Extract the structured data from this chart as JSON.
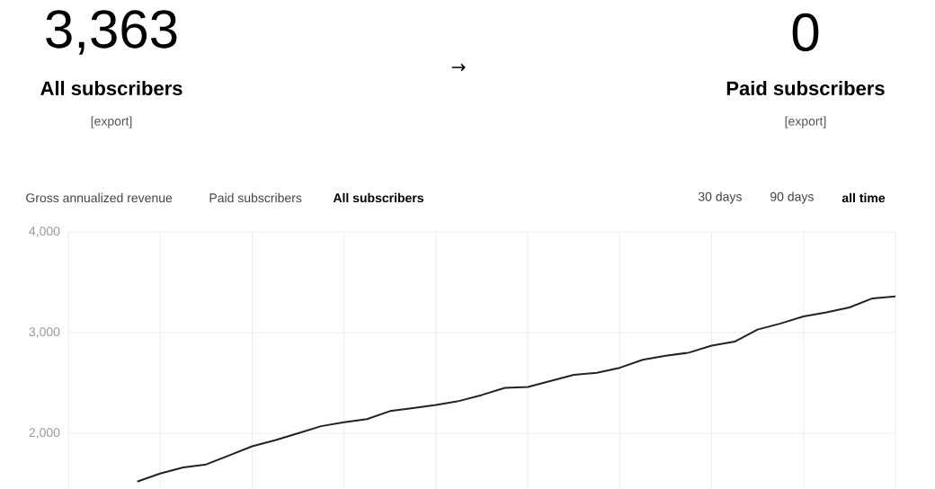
{
  "chart_data": {
    "type": "line",
    "color": "#222222",
    "categories": [
      null,
      null,
      null,
      null,
      null,
      null,
      null,
      null,
      null,
      null,
      null,
      null,
      null,
      null,
      null,
      null,
      null,
      null,
      null,
      null,
      null,
      null,
      null,
      null,
      null,
      null,
      null,
      null,
      null,
      null,
      null,
      null,
      null,
      null
    ],
    "values": [
      1520,
      1600,
      1660,
      1690,
      1780,
      1870,
      1930,
      2000,
      2070,
      2110,
      2140,
      2220,
      2250,
      2280,
      2320,
      2380,
      2450,
      2460,
      2520,
      2580,
      2600,
      2650,
      2730,
      2770,
      2800,
      2870,
      2910,
      3030,
      3090,
      3160,
      3200,
      3250,
      3340,
      3360
    ],
    "ylim": [
      1430,
      4000
    ],
    "yticks": [
      {
        "value": 2000,
        "label": "2,000"
      },
      {
        "value": 3000,
        "label": "3,000"
      },
      {
        "value": 4000,
        "label": "4,000"
      }
    ],
    "grid": true,
    "tick_labels": "y",
    "annotations": [
      "3,363",
      "All subscribers",
      "[export]",
      "→",
      "0",
      "Paid subscribers",
      "[export]",
      "Gross annualized revenue",
      "Paid subscribers",
      "All subscribers",
      "30 days",
      "90 days",
      "all time"
    ]
  }
}
